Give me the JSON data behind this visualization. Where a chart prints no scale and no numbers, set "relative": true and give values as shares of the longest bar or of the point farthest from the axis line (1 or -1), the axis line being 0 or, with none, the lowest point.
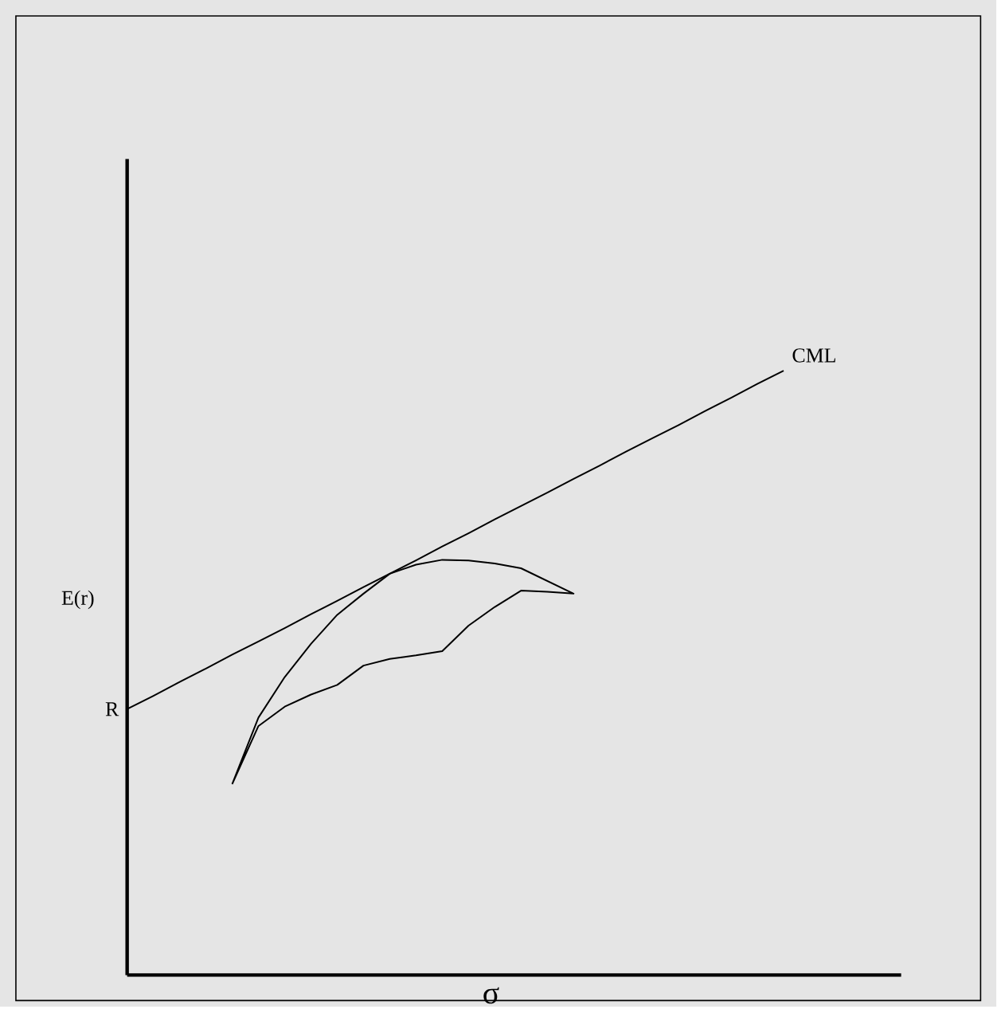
{
  "chart_data": {
    "type": "line",
    "relative": true,
    "xlabel": "σ",
    "ylabel": "E(r)",
    "categories": [
      null,
      null,
      null,
      null,
      null,
      null,
      null,
      null,
      null,
      null,
      null,
      null,
      null,
      null,
      null,
      null,
      null,
      null,
      null,
      null,
      null,
      null,
      null,
      null,
      null,
      null
    ],
    "series": [
      {
        "color": "#000000",
        "values": [
          0.44,
          0.462,
          0.485,
          0.507,
          0.53,
          0.552,
          0.574,
          0.597,
          0.619,
          0.642,
          0.664,
          0.686,
          0.709,
          0.731,
          0.754,
          0.776,
          0.798,
          0.821,
          0.843,
          0.866,
          0.888,
          0.91,
          0.933,
          0.955,
          0.978,
          1.0
        ]
      }
    ],
    "annotations": [
      "R",
      "CML"
    ]
  }
}
